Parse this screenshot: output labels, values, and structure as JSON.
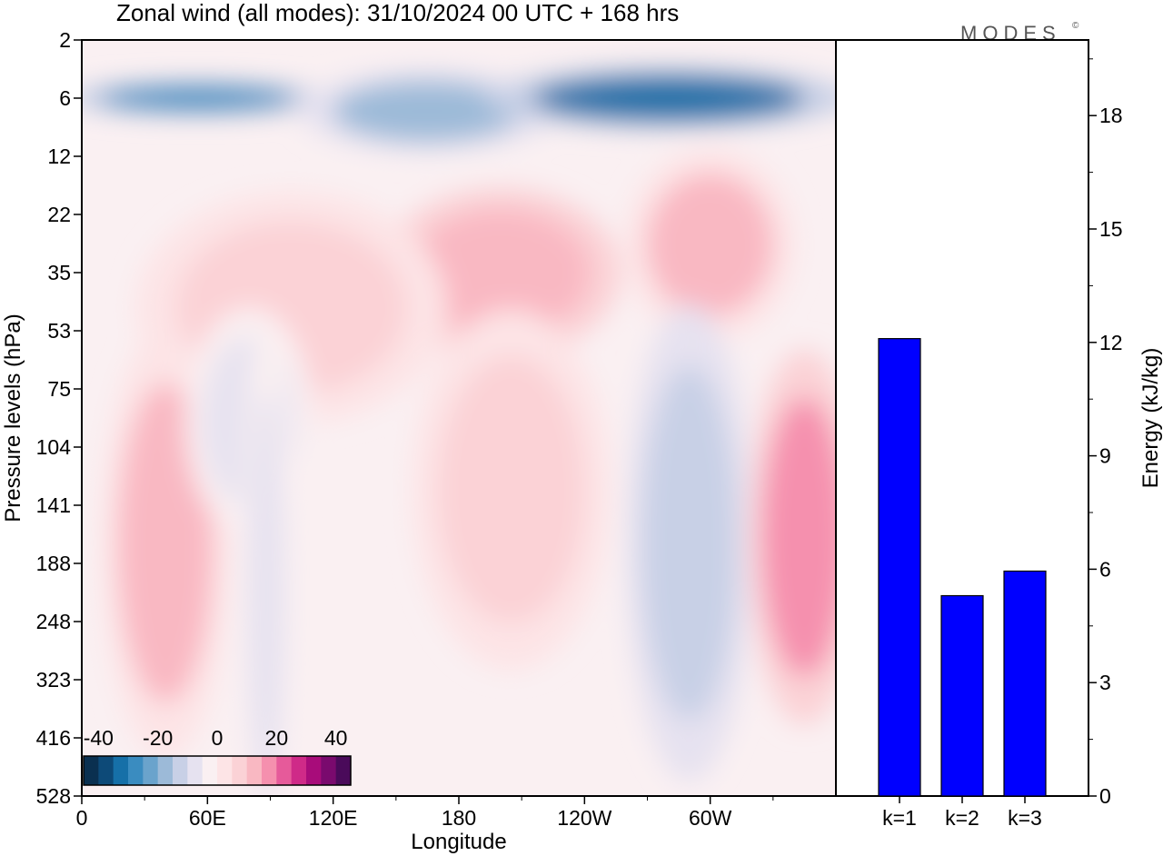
{
  "title": "Zonal wind (all modes):  31/10/2024  00 UTC  + 168 hrs",
  "logo": "MODES",
  "logo_mark": "©",
  "colors": {
    "bar_fill": "#0000ff",
    "palette": [
      "#0a3050",
      "#0d4a78",
      "#1670a8",
      "#3a8cc0",
      "#6aa3cc",
      "#9cbad8",
      "#c8d0e6",
      "#e6e2f0",
      "#faf0f2",
      "#fde4e6",
      "#fbd2d6",
      "#f9b8c2",
      "#f590ae",
      "#e65a9a",
      "#cf2a88",
      "#a80c7a",
      "#7a0a6e",
      "#4a0a5a"
    ]
  },
  "chart_data": [
    {
      "type": "heatmap",
      "title": "Zonal wind (all modes):  31/10/2024  00 UTC  + 168 hrs",
      "xlabel": "Longitude",
      "ylabel": "Pressure levels (hPa)",
      "x_ticks": [
        "0",
        "60E",
        "120E",
        "180",
        "120W",
        "60W"
      ],
      "y_ticks": [
        "2",
        "6",
        "12",
        "22",
        "35",
        "53",
        "75",
        "104",
        "141",
        "188",
        "248",
        "323",
        "416",
        "528"
      ],
      "colorbar": {
        "labels": [
          "-40",
          "-20",
          "0",
          "20",
          "40"
        ],
        "min": -45,
        "max": 45,
        "step": 5
      },
      "features": [
        {
          "lon": 55,
          "level": 6,
          "value": -30,
          "lon_width": 95,
          "level_span": 1.2
        },
        {
          "lon": 165,
          "level": 7,
          "value": -18,
          "lon_width": 90,
          "level_span": 1.5
        },
        {
          "lon": 280,
          "level": 6,
          "value": -32,
          "lon_width": 130,
          "level_span": 1.4
        },
        {
          "lon": 200,
          "level": 35,
          "value": 12,
          "lon_width": 85,
          "level_span": 1.6
        },
        {
          "lon": 100,
          "level": 45,
          "value": 9,
          "lon_width": 110,
          "level_span": 1.8
        },
        {
          "lon": 300,
          "level": 28,
          "value": 10,
          "lon_width": 60,
          "level_span": 1.8
        },
        {
          "lon": 290,
          "level": 170,
          "value": -13,
          "lon_width": 45,
          "level_span": 2.4
        },
        {
          "lon": 345,
          "level": 165,
          "value": 18,
          "lon_width": 40,
          "level_span": 2.0
        },
        {
          "lon": 40,
          "level": 170,
          "value": 10,
          "lon_width": 45,
          "level_span": 2.2
        },
        {
          "lon": 205,
          "level": 130,
          "value": 8,
          "lon_width": 70,
          "level_span": 2.0
        },
        {
          "lon": 80,
          "level": 90,
          "value": -6,
          "lon_width": 45,
          "level_span": 1.6
        },
        {
          "lon": 88,
          "level": 220,
          "value": -7,
          "lon_width": 18,
          "level_span": 3.0
        }
      ]
    },
    {
      "type": "bar",
      "categories": [
        "k=1",
        "k=2",
        "k=3"
      ],
      "values": [
        12.1,
        5.3,
        5.95
      ],
      "ylabel": "Energy (kJ/kg)",
      "y_ticks": [
        "0",
        "3",
        "6",
        "9",
        "12",
        "15",
        "18"
      ],
      "ylim": [
        0,
        20
      ]
    }
  ]
}
